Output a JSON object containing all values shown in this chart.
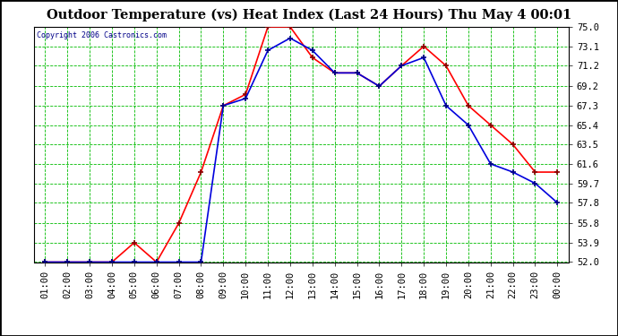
{
  "title": "Outdoor Temperature (vs) Heat Index (Last 24 Hours) Thu May 4 00:01",
  "copyright": "Copyright 2006 Castronics.com",
  "x_labels": [
    "01:00",
    "02:00",
    "03:00",
    "04:00",
    "05:00",
    "06:00",
    "07:00",
    "08:00",
    "09:00",
    "10:00",
    "11:00",
    "12:00",
    "13:00",
    "14:00",
    "15:00",
    "16:00",
    "17:00",
    "18:00",
    "19:00",
    "20:00",
    "21:00",
    "22:00",
    "23:00",
    "00:00"
  ],
  "temp_red": [
    52.0,
    52.0,
    52.0,
    52.0,
    53.9,
    52.0,
    55.8,
    60.8,
    67.3,
    68.4,
    75.0,
    75.0,
    72.0,
    70.5,
    70.5,
    69.2,
    71.2,
    73.1,
    71.2,
    67.3,
    65.4,
    63.5,
    60.8,
    60.8
  ],
  "temp_blue": [
    52.0,
    52.0,
    52.0,
    52.0,
    52.0,
    52.0,
    52.0,
    52.0,
    67.3,
    68.0,
    72.7,
    73.9,
    72.7,
    70.5,
    70.5,
    69.2,
    71.2,
    72.0,
    67.3,
    65.4,
    61.6,
    60.8,
    59.7,
    57.8
  ],
  "ylim": [
    52.0,
    75.0
  ],
  "yticks": [
    52.0,
    53.9,
    55.8,
    57.8,
    59.7,
    61.6,
    63.5,
    65.4,
    67.3,
    69.2,
    71.2,
    73.1,
    75.0
  ],
  "bg_color": "#ffffff",
  "plot_bg": "#ffffff",
  "grid_color": "#00bb00",
  "title_color": "#000000",
  "red_color": "#ff0000",
  "blue_color": "#0000dd",
  "marker_red": "#880000",
  "marker_blue": "#000088",
  "border_color": "#000000",
  "copyright_color": "#000088",
  "title_fontsize": 10.5,
  "tick_fontsize": 7.5
}
